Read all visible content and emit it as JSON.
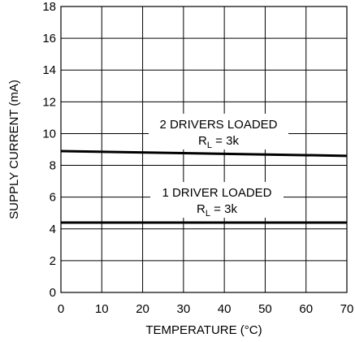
{
  "chart_data": {
    "type": "line",
    "xlabel": "TEMPERATURE (°C)",
    "ylabel": "SUPPLY CURRENT (mA)",
    "xlim": [
      0,
      70
    ],
    "ylim": [
      0,
      18
    ],
    "xticks": [
      0,
      10,
      20,
      30,
      40,
      50,
      60,
      70
    ],
    "yticks": [
      0,
      2,
      4,
      6,
      8,
      10,
      12,
      14,
      16,
      18
    ],
    "grid": true,
    "series": [
      {
        "x": [
          0,
          70
        ],
        "y": [
          8.9,
          8.6
        ]
      },
      {
        "x": [
          0,
          70
        ],
        "y": [
          4.4,
          4.4
        ]
      }
    ],
    "annotations": [
      {
        "line1": "2 DRIVERS LOADED",
        "line2_main": "R",
        "line2_sub": "L",
        "line2_rest": " = 3k"
      },
      {
        "line1": "1 DRIVER LOADED",
        "line2_main": "R",
        "line2_sub": "L",
        "line2_rest": " = 3k"
      }
    ]
  }
}
